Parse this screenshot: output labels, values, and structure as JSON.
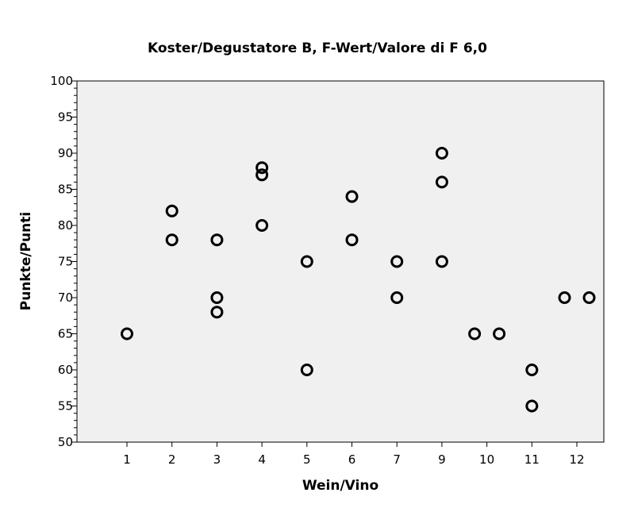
{
  "chart_data": {
    "type": "scatter",
    "title": "Koster/Degustatore B, F-Wert/Valore di F 6,0",
    "xlabel": "Wein/Vino",
    "ylabel": "Punkte/Punti",
    "categories": [
      "1",
      "2",
      "3",
      "4",
      "5",
      "6",
      "7",
      "9",
      "10",
      "11",
      "12"
    ],
    "ylim": [
      50,
      100
    ],
    "y_ticks": [
      "50",
      "55",
      "60",
      "65",
      "70",
      "75",
      "80",
      "85",
      "90",
      "95",
      "100"
    ],
    "grid": false,
    "legend": "none",
    "marker": "open-circle",
    "background_color": "#f0f0f0",
    "series": [
      {
        "points": [
          {
            "x": "1",
            "y": 65
          },
          {
            "x": "2",
            "y": 82
          },
          {
            "x": "2",
            "y": 78
          },
          {
            "x": "3",
            "y": 78
          },
          {
            "x": "3",
            "y": 70
          },
          {
            "x": "3",
            "y": 68
          },
          {
            "x": "4",
            "y": 88
          },
          {
            "x": "4",
            "y": 87
          },
          {
            "x": "4",
            "y": 80
          },
          {
            "x": "5",
            "y": 75
          },
          {
            "x": "5",
            "y": 60
          },
          {
            "x": "6",
            "y": 84
          },
          {
            "x": "6",
            "y": 78
          },
          {
            "x": "7",
            "y": 75
          },
          {
            "x": "7",
            "y": 70
          },
          {
            "x": "9",
            "y": 90
          },
          {
            "x": "9",
            "y": 86
          },
          {
            "x": "9",
            "y": 75
          },
          {
            "x": "10",
            "y": 65
          },
          {
            "x": "10",
            "y": 65
          },
          {
            "x": "11",
            "y": 60
          },
          {
            "x": "11",
            "y": 55
          },
          {
            "x": "12",
            "y": 70
          },
          {
            "x": "12",
            "y": 70
          }
        ]
      }
    ]
  }
}
